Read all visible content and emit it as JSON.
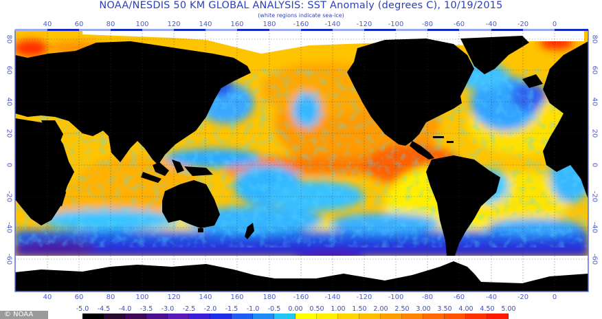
{
  "header": {
    "title": "NOAA/NESDIS 50 KM GLOBAL ANALYSIS: SST Anomaly (degrees C), 10/19/2015",
    "subtitle": "(white regions indicate sea-ice)"
  },
  "axes": {
    "longitude_ticks": [
      "40",
      "60",
      "80",
      "100",
      "120",
      "140",
      "160",
      "180",
      "-160",
      "-140",
      "-120",
      "-100",
      "-80",
      "-60",
      "-40",
      "-20",
      "0"
    ],
    "latitude_ticks": [
      "80",
      "60",
      "40",
      "20",
      "0",
      "-20",
      "-40",
      "-60"
    ]
  },
  "legend": {
    "labels": [
      "-5.0",
      "-4.5",
      "-4.0",
      "-3.5",
      "-3.0",
      "-2.5",
      "-2.0",
      "-1.5",
      "-1.0",
      "-0.5",
      "0.00",
      "0.50",
      "1.00",
      "1.50",
      "2.00",
      "2.50",
      "3.00",
      "3.50",
      "4.00",
      "4.50",
      "5.00"
    ],
    "colors": [
      "#000000",
      "#2a0a2e",
      "#3d0a5a",
      "#4a0f8c",
      "#5a1ab8",
      "#3b1fd6",
      "#1f2fe8",
      "#1e5ef0",
      "#1f8cf5",
      "#22c6f5",
      "#ffff00",
      "#fff000",
      "#ffd400",
      "#ffbf00",
      "#ff9e00",
      "#ff8500",
      "#ff6a00",
      "#ff5200",
      "#ff3300",
      "#ff1a00"
    ]
  },
  "credit": {
    "text": "© NOAA"
  },
  "colors": {
    "land": "#000000",
    "sea_ice": "#ffffff",
    "frame": "#3a4fd8",
    "axis_text": "#4a5bc8"
  }
}
